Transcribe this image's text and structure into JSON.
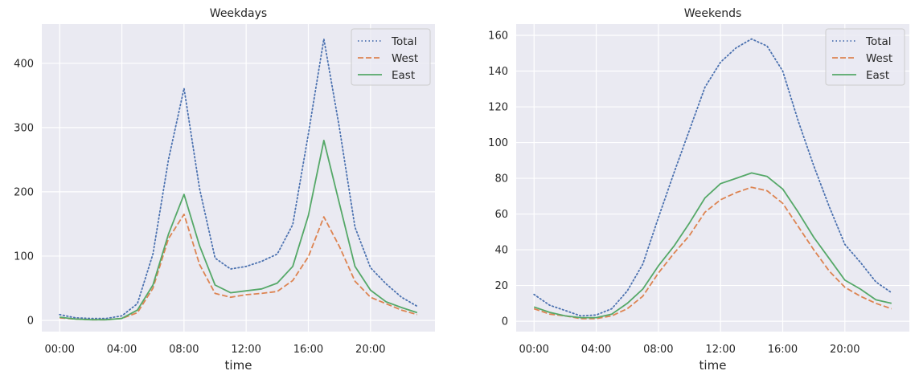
{
  "chart_data": [
    {
      "type": "line",
      "title": "Weekdays",
      "xlabel": "time",
      "ylabel": "",
      "x_unit": "hour of day",
      "x": [
        0,
        1,
        2,
        3,
        4,
        5,
        6,
        7,
        8,
        9,
        10,
        11,
        12,
        13,
        14,
        15,
        16,
        17,
        18,
        19,
        20,
        21,
        22,
        23
      ],
      "xticks": [
        "00:00",
        "04:00",
        "08:00",
        "12:00",
        "16:00",
        "20:00"
      ],
      "xtick_values": [
        0,
        4,
        8,
        12,
        16,
        20
      ],
      "yticks": [
        0,
        100,
        200,
        300,
        400
      ],
      "ylim": [
        -17.5,
        461
      ],
      "grid": true,
      "legend": "top-right",
      "series": [
        {
          "name": "Total",
          "style": "dotted",
          "color": "#4c72b0",
          "values": [
            9,
            4,
            3,
            3,
            7,
            26,
            103,
            250,
            361,
            205,
            97,
            80,
            84,
            92,
            103,
            149,
            290,
            438,
            300,
            145,
            82,
            57,
            36,
            22
          ]
        },
        {
          "name": "West",
          "style": "dashed",
          "color": "#dd8452",
          "values": [
            4,
            2,
            1,
            1,
            3,
            12,
            50,
            127,
            165,
            87,
            42,
            36,
            40,
            42,
            45,
            62,
            99,
            161,
            115,
            61,
            36,
            26,
            16,
            9
          ]
        },
        {
          "name": "East",
          "style": "solid",
          "color": "#55a868",
          "values": [
            5,
            2,
            1,
            1,
            3,
            16,
            55,
            134,
            196,
            116,
            55,
            43,
            46,
            49,
            58,
            84,
            163,
            280,
            182,
            84,
            47,
            29,
            20,
            12
          ]
        }
      ]
    },
    {
      "type": "line",
      "title": "Weekends",
      "xlabel": "time",
      "ylabel": "",
      "x_unit": "hour of day",
      "x": [
        0,
        1,
        2,
        3,
        4,
        5,
        6,
        7,
        8,
        9,
        10,
        11,
        12,
        13,
        14,
        15,
        16,
        17,
        18,
        19,
        20,
        21,
        22,
        23
      ],
      "xticks": [
        "00:00",
        "04:00",
        "08:00",
        "12:00",
        "16:00",
        "20:00"
      ],
      "xtick_values": [
        0,
        4,
        8,
        12,
        16,
        20
      ],
      "yticks": [
        0,
        20,
        40,
        60,
        80,
        100,
        120,
        140,
        160
      ],
      "ylim": [
        -5.8,
        166.3
      ],
      "grid": true,
      "legend": "top-right",
      "series": [
        {
          "name": "Total",
          "style": "dotted",
          "color": "#4c72b0",
          "values": [
            15,
            9,
            6,
            3,
            3.5,
            7,
            17,
            32,
            58,
            83,
            107,
            131,
            145,
            153,
            158,
            154,
            140,
            112,
            87,
            64,
            43,
            33,
            22,
            16
          ]
        },
        {
          "name": "West",
          "style": "dashed",
          "color": "#dd8452",
          "values": [
            7,
            4,
            3,
            1.5,
            1.5,
            3,
            7,
            14,
            27,
            38,
            48,
            61,
            68,
            72,
            75,
            73,
            66,
            53,
            40,
            28,
            19,
            14,
            10,
            7
          ]
        },
        {
          "name": "East",
          "style": "solid",
          "color": "#55a868",
          "values": [
            8,
            5,
            3,
            2,
            2,
            4,
            10,
            18,
            31,
            42,
            55,
            69,
            77,
            80,
            83,
            81,
            74,
            61,
            47,
            35,
            23,
            18,
            12,
            10
          ]
        }
      ]
    }
  ]
}
